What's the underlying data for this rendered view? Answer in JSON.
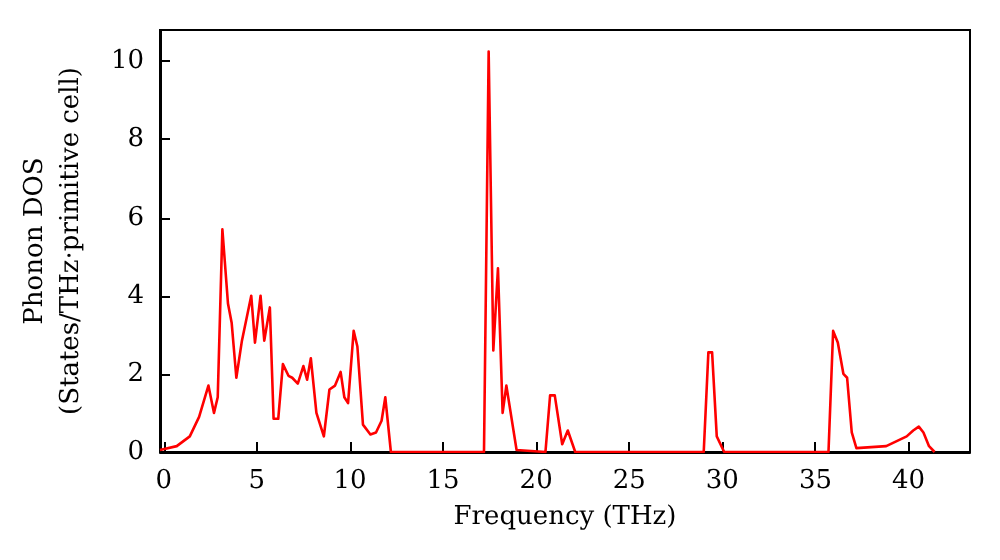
{
  "chart_data": {
    "type": "line",
    "xlabel": "Frequency (THz)",
    "ylabel": "Phonon DOS\n(States/THz·primitive cell)",
    "xlim": [
      -0.2,
      43.3
    ],
    "xticks": [
      0,
      5,
      10,
      15,
      20,
      25,
      30,
      35,
      40
    ],
    "ylim": [
      0,
      10.8
    ],
    "yticks": [
      0,
      2,
      4,
      6,
      8,
      10
    ],
    "grid": false,
    "marker": "none",
    "line_style": "solid",
    "series": [
      {
        "color": "#ff0000",
        "x": [
          -0.2,
          0.7,
          1.4,
          1.9,
          2.4,
          2.7,
          2.9,
          3.15,
          3.45,
          3.65,
          3.9,
          4.2,
          4.7,
          4.9,
          5.2,
          5.4,
          5.7,
          5.9,
          6.15,
          6.4,
          6.7,
          6.9,
          7.2,
          7.5,
          7.7,
          7.9,
          8.2,
          8.6,
          8.9,
          9.2,
          9.5,
          9.7,
          9.9,
          10.2,
          10.4,
          10.7,
          11.1,
          11.4,
          11.7,
          11.9,
          12.2,
          17.2,
          17.45,
          17.7,
          17.95,
          18.2,
          18.4,
          18.95,
          20.5,
          20.75,
          21.0,
          21.4,
          21.7,
          22.1,
          29.0,
          29.25,
          29.45,
          29.7,
          30.1,
          35.7,
          35.95,
          36.2,
          36.5,
          36.7,
          36.95,
          37.2,
          38.8,
          39.9,
          40.25,
          40.55,
          40.8,
          41.1,
          41.4
        ],
        "values": [
          0.05,
          0.15,
          0.4,
          0.9,
          1.7,
          1.0,
          1.4,
          5.7,
          3.8,
          3.3,
          1.9,
          2.85,
          4.0,
          2.8,
          4.0,
          2.85,
          3.7,
          0.85,
          0.85,
          2.25,
          1.95,
          1.9,
          1.75,
          2.2,
          1.85,
          2.4,
          1.0,
          0.4,
          1.6,
          1.7,
          2.05,
          1.4,
          1.25,
          3.1,
          2.7,
          0.7,
          0.45,
          0.5,
          0.8,
          1.4,
          0.0,
          0.0,
          10.25,
          2.6,
          4.7,
          1.0,
          1.7,
          0.05,
          0.0,
          1.45,
          1.45,
          0.2,
          0.55,
          0.0,
          0.0,
          2.55,
          2.55,
          0.4,
          0.0,
          0.0,
          3.1,
          2.8,
          2.0,
          1.9,
          0.5,
          0.1,
          0.15,
          0.4,
          0.55,
          0.65,
          0.5,
          0.15,
          0.0
        ]
      }
    ]
  }
}
